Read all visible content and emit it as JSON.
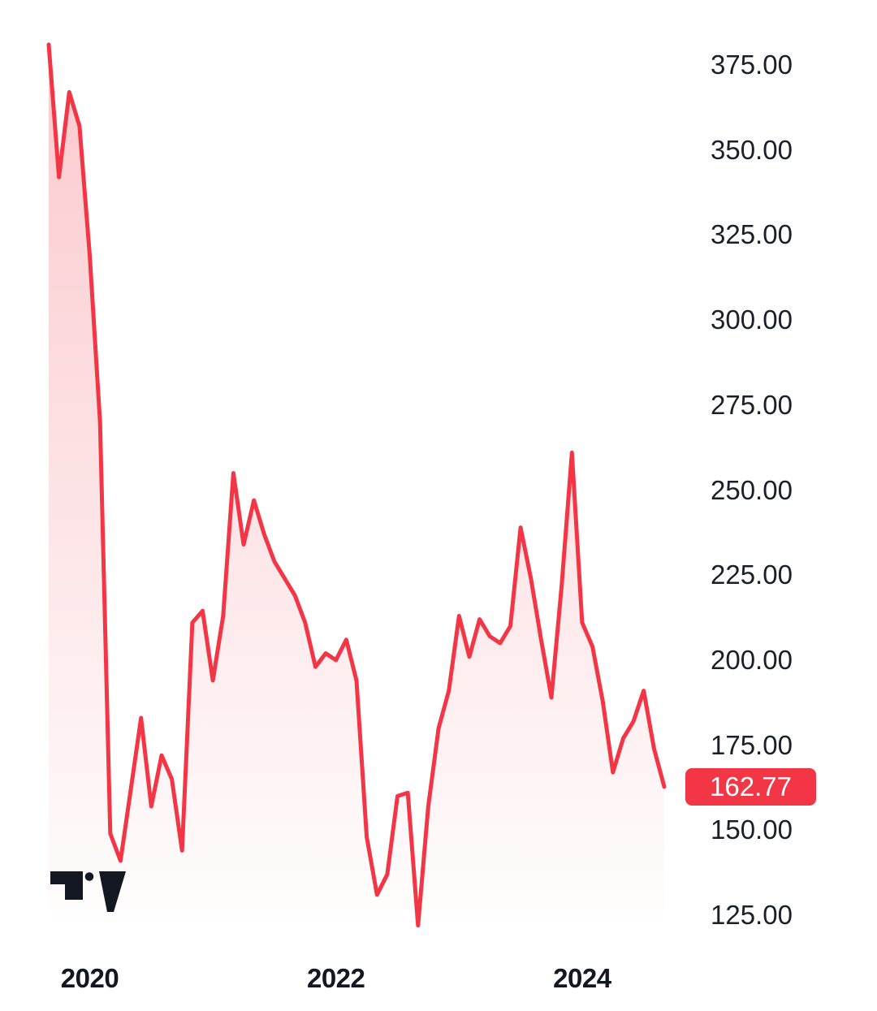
{
  "chart_data": {
    "type": "area",
    "x_unit": "month",
    "points": [
      [
        "2019-09",
        381
      ],
      [
        "2019-10",
        342
      ],
      [
        "2019-11",
        367
      ],
      [
        "2019-12",
        357
      ],
      [
        "2020-01",
        319
      ],
      [
        "2020-02",
        270
      ],
      [
        "2020-03",
        149
      ],
      [
        "2020-04",
        141
      ],
      [
        "2020-05",
        162
      ],
      [
        "2020-06",
        183
      ],
      [
        "2020-07",
        157
      ],
      [
        "2020-08",
        172
      ],
      [
        "2020-09",
        165
      ],
      [
        "2020-10",
        144
      ],
      [
        "2020-11",
        211
      ],
      [
        "2020-12",
        214.5
      ],
      [
        "2021-01",
        194
      ],
      [
        "2021-02",
        213
      ],
      [
        "2021-03",
        255
      ],
      [
        "2021-04",
        234
      ],
      [
        "2021-05",
        247
      ],
      [
        "2021-06",
        237
      ],
      [
        "2021-07",
        229
      ],
      [
        "2021-08",
        224
      ],
      [
        "2021-09",
        219
      ],
      [
        "2021-10",
        211
      ],
      [
        "2021-11",
        198
      ],
      [
        "2021-12",
        202
      ],
      [
        "2022-01",
        200
      ],
      [
        "2022-02",
        206
      ],
      [
        "2022-03",
        194
      ],
      [
        "2022-04",
        148
      ],
      [
        "2022-05",
        131
      ],
      [
        "2022-06",
        137
      ],
      [
        "2022-07",
        160
      ],
      [
        "2022-08",
        161
      ],
      [
        "2022-09",
        122
      ],
      [
        "2022-10",
        157
      ],
      [
        "2022-11",
        180
      ],
      [
        "2022-12",
        191
      ],
      [
        "2023-01",
        213
      ],
      [
        "2023-02",
        201
      ],
      [
        "2023-03",
        212
      ],
      [
        "2023-04",
        207
      ],
      [
        "2023-05",
        205
      ],
      [
        "2023-06",
        210
      ],
      [
        "2023-07",
        239
      ],
      [
        "2023-08",
        224
      ],
      [
        "2023-09",
        206
      ],
      [
        "2023-10",
        189
      ],
      [
        "2023-11",
        222
      ],
      [
        "2023-12",
        261
      ],
      [
        "2024-01",
        211
      ],
      [
        "2024-02",
        204
      ],
      [
        "2024-03",
        188
      ],
      [
        "2024-04",
        167
      ],
      [
        "2024-05",
        177
      ],
      [
        "2024-06",
        182
      ],
      [
        "2024-07",
        191
      ],
      [
        "2024-08",
        174
      ],
      [
        "2024-09",
        162.77
      ]
    ],
    "y_axis": {
      "side": "right",
      "ticks": [
        "375.00",
        "350.00",
        "325.00",
        "300.00",
        "275.00",
        "250.00",
        "225.00",
        "200.00",
        "175.00",
        "150.00",
        "125.00"
      ]
    },
    "x_axis": {
      "ticks": [
        "2020",
        "2022",
        "2024"
      ],
      "start_month": "2019-09"
    },
    "last_price": 162.77,
    "last_price_label": "162.77",
    "grid": false,
    "legend": false,
    "colors": {
      "line": "#f23645",
      "fill_top": "rgba(242,54,69,0.27)",
      "fill_bottom": "rgba(242,54,69,0)",
      "badge_bg": "#f23645",
      "badge_text": "#ffffff",
      "y_axis_text": "#1b1f2a",
      "x_axis_text": "#131722",
      "logo": "#131722"
    }
  },
  "icons": {
    "logo": "tradingview-logo"
  }
}
